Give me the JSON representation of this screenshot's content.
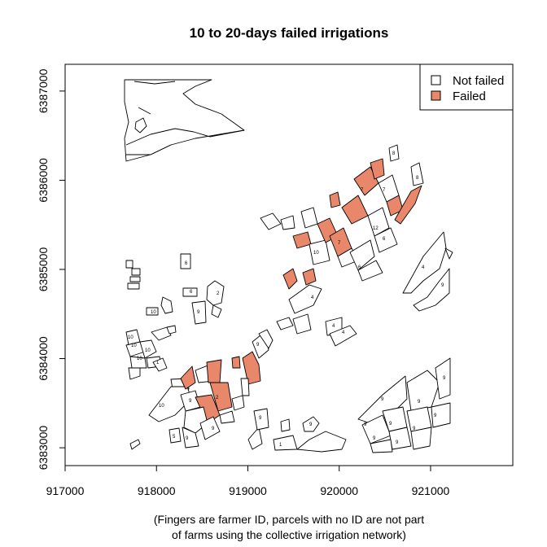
{
  "title": "10 to 20-days failed irrigations",
  "caption": {
    "line1": "(Fingers are farmer ID, parcels with no ID are not part",
    "line2": "of farms using the collective irrigation network)"
  },
  "colors": {
    "failed": "#e8876a",
    "not_failed": "#ffffff",
    "stroke": "#000000"
  },
  "legend": {
    "placement": "top-right",
    "items": [
      {
        "key": "not_failed",
        "label": "Not failed"
      },
      {
        "key": "failed",
        "label": "Failed"
      }
    ]
  },
  "axes": {
    "x": {
      "range": [
        917000,
        921900
      ],
      "ticks": [
        917000,
        918000,
        919000,
        920000,
        921000
      ]
    },
    "y": {
      "range": [
        6382800,
        6387300
      ],
      "ticks": [
        6383000,
        6384000,
        6385000,
        6386000,
        6387000
      ]
    }
  },
  "farmer_ids": [
    "1",
    "2",
    "4",
    "5",
    "6",
    "7",
    "8",
    "9",
    "10",
    "12"
  ]
}
